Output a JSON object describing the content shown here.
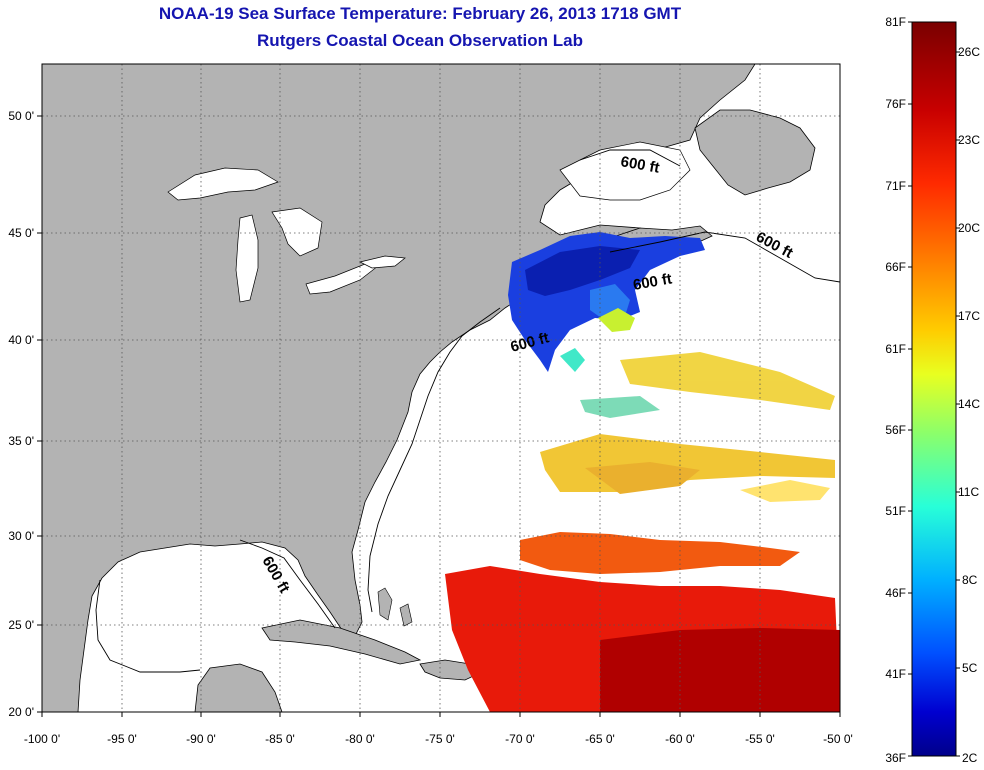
{
  "title": {
    "line1": "NOAA-19 Sea Surface Temperature:  February 26, 2013 1718 GMT",
    "line2": "Rutgers Coastal Ocean Observation Lab"
  },
  "axes": {
    "lon_ticks": [
      "-100 0'",
      "-95 0'",
      "-90 0'",
      "-85 0'",
      "-80 0'",
      "-75 0'",
      "-70 0'",
      "-65 0'",
      "-60 0'",
      "-55 0'",
      "-50 0'"
    ],
    "lat_ticks": [
      "20 0'",
      "25 0'",
      "30 0'",
      "35 0'",
      "40 0'",
      "45 0'",
      "50 0'"
    ]
  },
  "contour_labels": [
    "600 ft",
    "600 ft",
    "600 ft",
    "600 ft",
    "600 ft"
  ],
  "colorbar": {
    "fahrenheit_labels": [
      "81F",
      "76F",
      "71F",
      "66F",
      "61F",
      "56F",
      "51F",
      "46F",
      "41F",
      "36F"
    ],
    "celsius_labels": [
      "26C",
      "23C",
      "20C",
      "17C",
      "14C",
      "11C",
      "8C",
      "5C",
      "2C"
    ],
    "colors": [
      "#7a0000",
      "#c80000",
      "#ff2a00",
      "#ff7a00",
      "#ffcc00",
      "#e8ff20",
      "#8cff6a",
      "#28ffd8",
      "#00b0ff",
      "#0050ff",
      "#0000d0",
      "#00008a"
    ]
  },
  "colors": {
    "land": "#b3b3b3",
    "ocean": "#ffffff",
    "title": "#1515b0"
  }
}
